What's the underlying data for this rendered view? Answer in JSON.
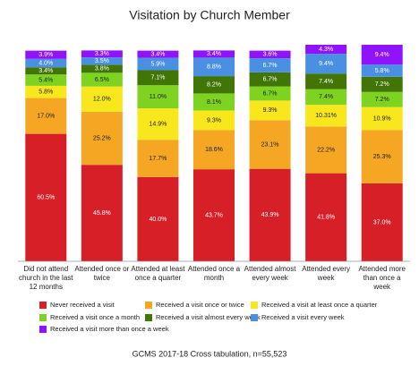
{
  "chart_data": {
    "type": "stacked-bar",
    "title": "Visitation by Church Member",
    "note": "GCMS 2017-18 Cross tabulation, n=55,523",
    "categories": [
      "Did not attend church in the last 12 months",
      "Attended once or twice",
      "Attended at least once a quarter",
      "Attended once a month",
      "Attended almost every week",
      "Attended every week",
      "Attended more than once a week"
    ],
    "series": [
      {
        "name": "Never received a visit",
        "color": "#d71f27",
        "values": [
          60.5,
          45.8,
          40.0,
          43.7,
          43.9,
          41.8,
          37.0
        ],
        "value_labels": [
          "60.5%",
          "45.8%",
          "40.0%",
          "43.7%",
          "43.9%",
          "41.8%",
          "37.0%"
        ]
      },
      {
        "name": "Received a visit once or twice",
        "color": "#f5a623",
        "values": [
          17.0,
          25.2,
          17.7,
          18.6,
          23.1,
          22.2,
          25.3
        ],
        "value_labels": [
          "17.0%",
          "25.2%",
          "17.7%",
          "18.6%",
          "23.1%",
          "22.2%",
          "25.3%"
        ]
      },
      {
        "name": "Received a visit at least once a quarter",
        "color": "#f8e71c",
        "values": [
          5.8,
          12.0,
          14.9,
          9.3,
          9.3,
          10.31,
          10.9
        ],
        "value_labels": [
          "5.8%",
          "12.0%",
          "14.9%",
          "9.3%",
          "9.3%",
          "10.31%",
          "10.9%"
        ]
      },
      {
        "name": "Received a visit once a month",
        "color": "#7ed321",
        "values": [
          5.4,
          6.5,
          11.0,
          8.1,
          6.7,
          7.4,
          7.2
        ],
        "value_labels": [
          "5.4%",
          "6.5%",
          "11.0%",
          "8.1%",
          "6.7%",
          "7.4%",
          "7.2%"
        ]
      },
      {
        "name": "Received a visit almost every week",
        "color": "#417505",
        "values": [
          3.4,
          3.8,
          7.1,
          8.2,
          6.7,
          7.4,
          7.2
        ],
        "value_labels": [
          "3.4%",
          "3.8%",
          "7.1%",
          "8.2%",
          "6.7%",
          "7.4%",
          "7.2%"
        ]
      },
      {
        "name": "Received a visit every week",
        "color": "#4a90e2",
        "values": [
          4.0,
          3.5,
          5.9,
          8.8,
          6.7,
          9.4,
          5.8
        ],
        "value_labels": [
          "4.0%",
          "3.5%",
          "5.9%",
          "8.8%",
          "6.7%",
          "9.4%",
          "5.8%"
        ]
      },
      {
        "name": "Received a visit more than once a week",
        "color": "#9013fe",
        "values": [
          3.9,
          3.3,
          3.4,
          3.4,
          3.6,
          4.3,
          9.4
        ],
        "value_labels": [
          "3.9%",
          "3.3%",
          "3.4%",
          "3.4%",
          "3.6%",
          "4.3%",
          "9.4%"
        ]
      }
    ]
  }
}
